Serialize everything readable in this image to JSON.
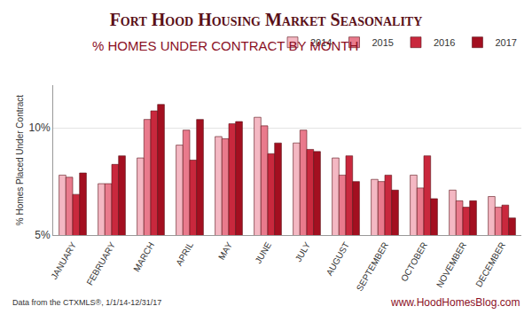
{
  "chart_data": {
    "type": "bar",
    "title": "Fort Hood Housing Market Seasonality",
    "subtitle": "% HOMES UNDER CONTRACT BY MONTH",
    "y_label": "% Homes Placed Under Contract",
    "annotations": [
      "Data from the CTXMLS®, 1/1/14-12/31/17",
      "www.HoodHomesBlog.com"
    ],
    "categories": [
      "JANUARY",
      "FEBRUARY",
      "MARCH",
      "APRIL",
      "MAY",
      "JUNE",
      "JULY",
      "AUGUST",
      "SEPTEMBER",
      "OCTOBER",
      "NOVEMBER",
      "DECEMBER"
    ],
    "series": [
      {
        "name": "2014",
        "color": "#f4b8c3",
        "values": [
          7.8,
          7.4,
          8.6,
          9.2,
          9.6,
          10.5,
          9.3,
          8.6,
          7.6,
          7.8,
          7.1,
          6.8
        ]
      },
      {
        "name": "2015",
        "color": "#e97a8c",
        "values": [
          7.7,
          7.4,
          10.4,
          9.9,
          9.5,
          10.1,
          9.9,
          7.8,
          7.5,
          7.2,
          6.6,
          6.3
        ]
      },
      {
        "name": "2016",
        "color": "#c9283d",
        "values": [
          6.9,
          8.3,
          10.8,
          8.5,
          10.2,
          8.8,
          9.0,
          8.7,
          7.8,
          8.7,
          6.3,
          6.4
        ]
      },
      {
        "name": "2017",
        "color": "#a30f20",
        "values": [
          7.9,
          8.7,
          11.1,
          10.4,
          10.3,
          9.3,
          8.9,
          7.5,
          7.1,
          6.7,
          6.6,
          5.8
        ]
      }
    ],
    "ylim": [
      5,
      12
    ],
    "yticks": [
      {
        "value": 5,
        "label": "5%"
      },
      {
        "value": 10,
        "label": "10%"
      }
    ],
    "grid": true,
    "legend": "top right"
  }
}
